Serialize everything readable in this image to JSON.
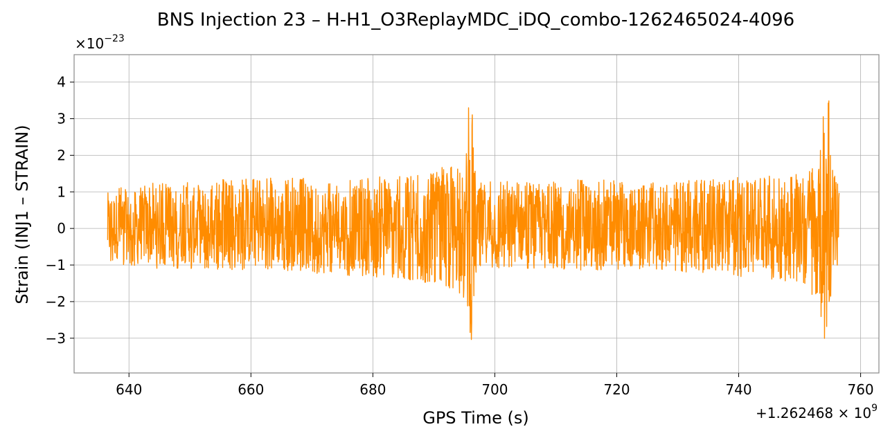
{
  "chart_data": {
    "type": "line",
    "title": "BNS Injection 23 – H-H1_O3ReplayMDC_iDQ_combo-1262465024-4096",
    "xlabel": "GPS Time (s)",
    "ylabel": "Strain (INJ1 – STRAIN)",
    "y_multiplier": "×10",
    "y_multiplier_exp": "−23",
    "x_offset_prefix": "+1.262468 × 10",
    "x_offset_exp": "9",
    "xlim": [
      631,
      763
    ],
    "ylim": [
      -3.95,
      4.75
    ],
    "grid": true,
    "x_ticks": [
      {
        "value": 640,
        "label": "640"
      },
      {
        "value": 660,
        "label": "660"
      },
      {
        "value": 680,
        "label": "680"
      },
      {
        "value": 700,
        "label": "700"
      },
      {
        "value": 720,
        "label": "720"
      },
      {
        "value": 740,
        "label": "740"
      },
      {
        "value": 760,
        "label": "760"
      }
    ],
    "y_ticks": [
      {
        "value": -3,
        "label": "−3"
      },
      {
        "value": -2,
        "label": "−2"
      },
      {
        "value": -1,
        "label": "−1"
      },
      {
        "value": 0,
        "label": "0"
      },
      {
        "value": 1,
        "label": "1"
      },
      {
        "value": 2,
        "label": "2"
      },
      {
        "value": 3,
        "label": "3"
      },
      {
        "value": 4,
        "label": "4"
      }
    ],
    "series": [
      {
        "color": "#ff8c00",
        "x_start": 636.5,
        "x_end": 756.5,
        "envelope": [
          {
            "x": 636.5,
            "max": 1.15,
            "min": -0.95
          },
          {
            "x": 645,
            "max": 1.25,
            "min": -1.1
          },
          {
            "x": 655,
            "max": 1.35,
            "min": -1.15
          },
          {
            "x": 665,
            "max": 1.4,
            "min": -1.2
          },
          {
            "x": 675,
            "max": 1.35,
            "min": -1.3
          },
          {
            "x": 685,
            "max": 1.45,
            "min": -1.4
          },
          {
            "x": 692,
            "max": 1.7,
            "min": -1.6
          },
          {
            "x": 695,
            "max": 1.8,
            "min": -1.9
          },
          {
            "x": 696,
            "max": 4.1,
            "min": -3.45
          },
          {
            "x": 697,
            "max": 1.3,
            "min": -1.1
          },
          {
            "x": 705,
            "max": 1.3,
            "min": -1.1
          },
          {
            "x": 715,
            "max": 1.35,
            "min": -1.15
          },
          {
            "x": 725,
            "max": 1.3,
            "min": -1.1
          },
          {
            "x": 735,
            "max": 1.35,
            "min": -1.25
          },
          {
            "x": 745,
            "max": 1.45,
            "min": -1.4
          },
          {
            "x": 750,
            "max": 1.5,
            "min": -1.5
          },
          {
            "x": 753,
            "max": 1.9,
            "min": -2.1
          },
          {
            "x": 754.5,
            "max": 4.35,
            "min": -3.55
          },
          {
            "x": 755.5,
            "max": 1.6,
            "min": -1.3
          },
          {
            "x": 756.5,
            "max": 1.1,
            "min": -0.9
          }
        ]
      }
    ]
  }
}
